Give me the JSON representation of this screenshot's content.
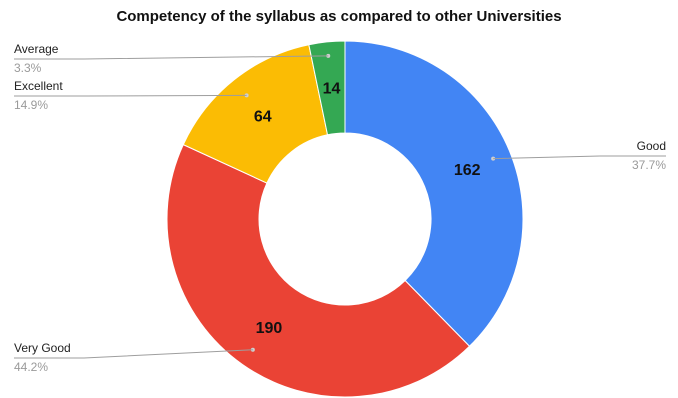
{
  "chart_data": {
    "type": "pie",
    "subtype": "donut",
    "title": "Competency of the syllabus as compared to other Universities",
    "legend_placement": "outside-labels",
    "slices": [
      {
        "label": "Good",
        "value": 162,
        "percent_label": "37.7%",
        "color": "#4285F4"
      },
      {
        "label": "Very Good",
        "value": 190,
        "percent_label": "44.2%",
        "color": "#EA4335"
      },
      {
        "label": "Excellent",
        "value": 64,
        "percent_label": "14.9%",
        "color": "#FBBC04"
      },
      {
        "label": "Average",
        "value": 14,
        "percent_label": "3.3%",
        "color": "#34A853"
      }
    ]
  }
}
